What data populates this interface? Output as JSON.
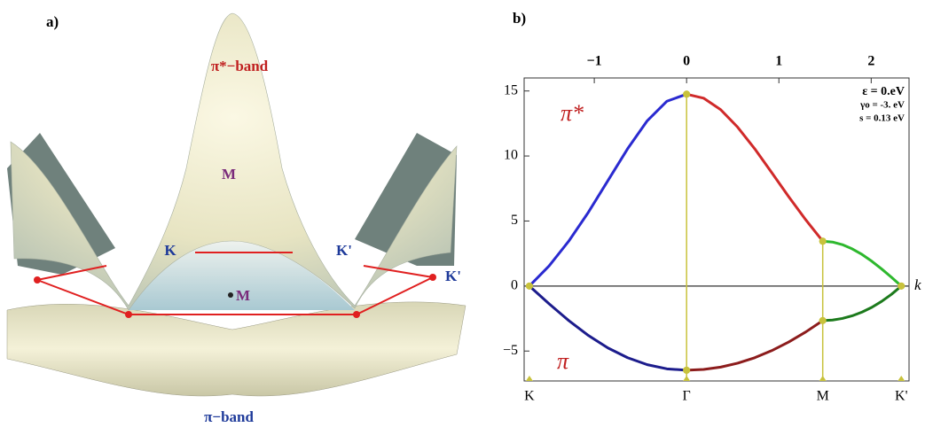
{
  "panel_a": {
    "label": "a)",
    "upper_band": "π*−band",
    "lower_band": "π−band",
    "m_top": "M",
    "k_left": "K",
    "k_right": "K'",
    "k_edge": "K'",
    "m_center": "M"
  },
  "chart_data": {
    "type": "line",
    "label": "b)",
    "xlim": [
      -1.76,
      2.41
    ],
    "xticks": [
      {
        "value": -1,
        "label": "−1"
      },
      0,
      1,
      2
    ],
    "ylim": [
      -7.3,
      16
    ],
    "yticks": [
      {
        "value": -5,
        "label": "−5"
      },
      0,
      5,
      10,
      15
    ],
    "x_label": "k",
    "high_symmetry_points": [
      {
        "value": -1.703,
        "label": "K"
      },
      {
        "value": 0,
        "label": "Γ"
      },
      {
        "value": 1.475,
        "label": "M"
      },
      {
        "value": 2.326,
        "label": "K'"
      }
    ],
    "band_labels": [
      "π*",
      "π"
    ],
    "annotations": [
      "ε = 0.eV",
      "γo = -3. eV",
      "s = 0.13 eV"
    ],
    "marker_color": "#c8c23c",
    "series": [
      {
        "color": "#2a2ad0",
        "x": [
          -1.703,
          -1.49,
          -1.277,
          -1.064,
          -0.852,
          -0.639,
          -0.426,
          -0.213,
          0
        ],
        "values": [
          0,
          1.544,
          3.448,
          5.672,
          8.108,
          10.556,
          12.711,
          14.213,
          14.754
        ]
      },
      {
        "color": "#d02a2a",
        "x": [
          0,
          0.184,
          0.369,
          0.553,
          0.738,
          0.922,
          1.106,
          1.291,
          1.475
        ],
        "values": [
          14.754,
          14.447,
          13.565,
          12.218,
          10.556,
          8.729,
          6.874,
          5.091,
          3.448
        ]
      },
      {
        "color": "#2eb82e",
        "x": [
          1.475,
          1.581,
          1.688,
          1.794,
          1.901,
          2.007,
          2.113,
          2.22,
          2.326
        ],
        "values": [
          3.448,
          3.381,
          3.181,
          2.858,
          2.427,
          1.905,
          1.313,
          0.672,
          0
        ]
      },
      {
        "color": "#1c1c8c",
        "x": [
          -1.703,
          -1.49,
          -1.277,
          -1.064,
          -0.852,
          -0.639,
          -0.426,
          -0.213,
          0
        ],
        "values": [
          0,
          -1.362,
          -2.655,
          -3.803,
          -4.762,
          -5.512,
          -6.048,
          -6.368,
          -6.475
        ]
      },
      {
        "color": "#8c1c1c",
        "x": [
          0,
          0.184,
          0.369,
          0.553,
          0.738,
          0.922,
          1.106,
          1.291,
          1.475
        ],
        "values": [
          -6.475,
          -6.415,
          -6.235,
          -5.934,
          -5.512,
          -4.969,
          -4.308,
          -3.532,
          -2.655
        ]
      },
      {
        "color": "#1c7a1c",
        "x": [
          1.475,
          1.581,
          1.688,
          1.794,
          1.901,
          2.007,
          2.113,
          2.22,
          2.326
        ],
        "values": [
          -2.655,
          -2.615,
          -2.493,
          -2.291,
          -2.005,
          -1.635,
          -1.179,
          -0.635,
          0
        ]
      }
    ]
  }
}
